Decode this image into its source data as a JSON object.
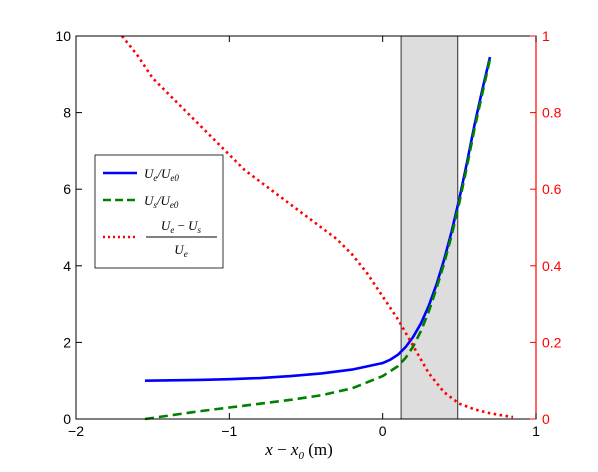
{
  "chart_data": {
    "type": "line",
    "title": "",
    "xlabel": "x − x₀ (m)",
    "ylabel_left": "",
    "ylabel_right": "",
    "xlim": [
      -2,
      1
    ],
    "ylim_left": [
      0,
      10
    ],
    "ylim_right": [
      0,
      1
    ],
    "x_ticks": [
      "−2",
      "−1",
      "0",
      "1"
    ],
    "x_tick_values": [
      -2,
      -1,
      0,
      1
    ],
    "y_left_ticks": [
      "0",
      "2",
      "4",
      "6",
      "8",
      "10"
    ],
    "y_left_tick_values": [
      0,
      2,
      4,
      6,
      8,
      10
    ],
    "y_right_ticks": [
      "0",
      "0.2",
      "0.4",
      "0.6",
      "0.8",
      "1"
    ],
    "y_right_tick_values": [
      0,
      0.2,
      0.4,
      0.6,
      0.8,
      1
    ],
    "grid": false,
    "legend_placement": "left",
    "shaded_region": {
      "x": [
        0.12,
        0.49
      ],
      "color": "#dddddd"
    },
    "series": [
      {
        "name": "Uₑ/Uₑ₀",
        "axis": "left",
        "color": "#0000ff",
        "style": "solid",
        "x": [
          -1.55,
          -1.2,
          -1.0,
          -0.8,
          -0.6,
          -0.4,
          -0.2,
          0.0,
          0.05,
          0.1,
          0.15,
          0.2,
          0.25,
          0.3,
          0.35,
          0.4,
          0.45,
          0.5,
          0.55,
          0.6,
          0.65,
          0.7
        ],
        "y": [
          1.0,
          1.02,
          1.04,
          1.07,
          1.12,
          1.19,
          1.29,
          1.46,
          1.55,
          1.68,
          1.88,
          2.15,
          2.5,
          2.95,
          3.5,
          4.15,
          4.9,
          5.75,
          6.7,
          7.7,
          8.6,
          9.45
        ]
      },
      {
        "name": "Uₛ/Uₑ₀",
        "axis": "left",
        "color": "#008000",
        "style": "dashed",
        "x": [
          -1.55,
          -1.2,
          -1.0,
          -0.8,
          -0.6,
          -0.4,
          -0.2,
          0.0,
          0.1,
          0.15,
          0.2,
          0.25,
          0.3,
          0.35,
          0.4,
          0.45,
          0.5,
          0.55,
          0.6,
          0.65,
          0.7
        ],
        "y": [
          0.0,
          0.2,
          0.3,
          0.4,
          0.5,
          0.62,
          0.8,
          1.12,
          1.38,
          1.6,
          1.9,
          2.3,
          2.8,
          3.4,
          4.05,
          4.8,
          5.65,
          6.6,
          7.6,
          8.5,
          9.4
        ]
      },
      {
        "name": "(Uₑ − Uₛ)/Uₑ",
        "axis": "right",
        "color": "#ff0000",
        "style": "dotted",
        "x": [
          -1.7,
          -1.6,
          -1.5,
          -1.4,
          -1.3,
          -1.2,
          -1.1,
          -1.0,
          -0.9,
          -0.8,
          -0.7,
          -0.6,
          -0.5,
          -0.4,
          -0.3,
          -0.2,
          -0.1,
          0.0,
          0.1,
          0.2,
          0.3,
          0.4,
          0.5,
          0.6,
          0.7,
          0.8,
          0.85
        ],
        "y": [
          1.0,
          0.95,
          0.89,
          0.85,
          0.81,
          0.77,
          0.73,
          0.69,
          0.65,
          0.62,
          0.59,
          0.56,
          0.53,
          0.5,
          0.47,
          0.43,
          0.38,
          0.32,
          0.26,
          0.19,
          0.12,
          0.07,
          0.04,
          0.025,
          0.015,
          0.008,
          0.005
        ]
      }
    ]
  },
  "legend": {
    "entries": [
      {
        "line_color": "#0000ff",
        "dash": "solid",
        "label_main": "U",
        "sub1": "e",
        "mid": "/U",
        "sub2": "e0"
      },
      {
        "line_color": "#008000",
        "dash": "dashed",
        "label_main": "U",
        "sub1": "s",
        "mid": "/U",
        "sub2": "e0"
      }
    ],
    "fraction_entry": {
      "line_color": "#ff0000",
      "numerator_a": "U",
      "numerator_a_sub": "e",
      "numerator_op": " − ",
      "numerator_b": "U",
      "numerator_b_sub": "s",
      "denominator": "U",
      "denominator_sub": "e"
    }
  },
  "xaxis_label": {
    "var": "x",
    "op": " − ",
    "var2": "x",
    "var2_sub": "0",
    "unit": " (m)"
  }
}
